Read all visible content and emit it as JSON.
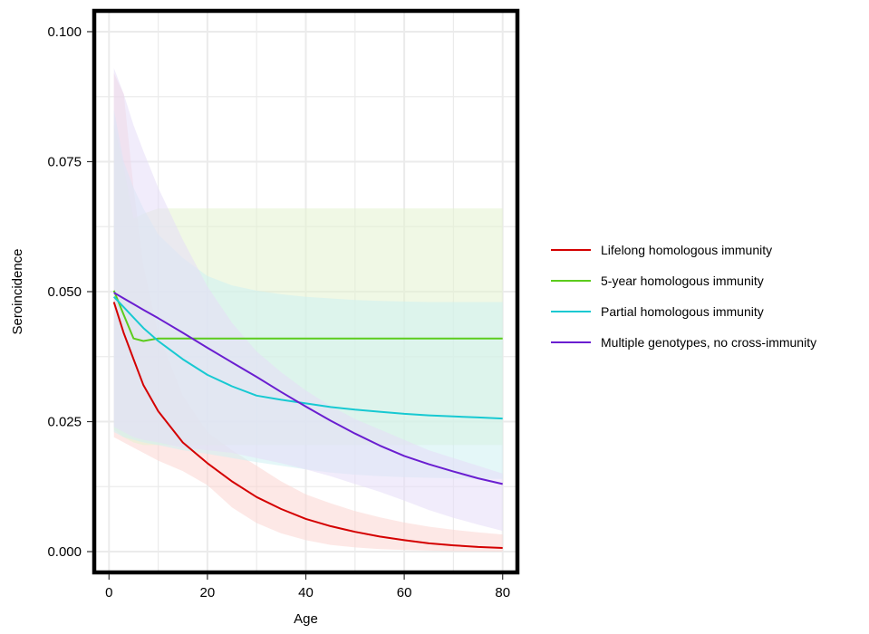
{
  "chart_data": {
    "type": "line",
    "title": "",
    "xlabel": "Age",
    "ylabel": "Seroincidence",
    "xlim": [
      -3,
      83
    ],
    "ylim": [
      -0.004,
      0.104
    ],
    "xticks": [
      0,
      20,
      40,
      60,
      80
    ],
    "xtick_labels": [
      "0",
      "20",
      "40",
      "60",
      "80"
    ],
    "yticks": [
      0.0,
      0.025,
      0.05,
      0.075,
      0.1
    ],
    "ytick_labels": [
      "0.000",
      "0.025",
      "0.050",
      "0.075",
      "0.100"
    ],
    "grid": true,
    "legend": "right",
    "x": [
      1,
      3,
      5,
      7,
      10,
      15,
      20,
      25,
      30,
      35,
      40,
      45,
      50,
      55,
      60,
      65,
      70,
      75,
      80
    ],
    "series": [
      {
        "name": "Lifelong homologous immunity",
        "color": "#d40000",
        "band_color": "#fcd6d2",
        "values": [
          0.048,
          0.042,
          0.037,
          0.032,
          0.027,
          0.021,
          0.017,
          0.0135,
          0.0105,
          0.0082,
          0.0063,
          0.0049,
          0.0038,
          0.0029,
          0.0022,
          0.0016,
          0.0012,
          0.0009,
          0.0007
        ],
        "lower": [
          0.022,
          0.021,
          0.02,
          0.019,
          0.0175,
          0.0155,
          0.0128,
          0.0085,
          0.0055,
          0.0035,
          0.0022,
          0.0013,
          0.0008,
          0.0005,
          0.0003,
          0.0002,
          0.0001,
          0.0001,
          0.0
        ],
        "upper": [
          0.092,
          0.088,
          0.07,
          0.055,
          0.042,
          0.03,
          0.023,
          0.0195,
          0.0165,
          0.0135,
          0.011,
          0.0093,
          0.0078,
          0.0066,
          0.0056,
          0.0048,
          0.0042,
          0.0037,
          0.0033
        ]
      },
      {
        "name": "5-year homologous immunity",
        "color": "#5ccc1c",
        "band_color": "#e4f2cf",
        "values": [
          0.0502,
          0.0455,
          0.041,
          0.0405,
          0.041,
          0.041,
          0.041,
          0.041,
          0.041,
          0.041,
          0.041,
          0.041,
          0.041,
          0.041,
          0.041,
          0.041,
          0.041,
          0.041,
          0.041
        ],
        "lower": [
          0.0235,
          0.022,
          0.021,
          0.0205,
          0.0205,
          0.0205,
          0.0205,
          0.0205,
          0.0205,
          0.0205,
          0.0205,
          0.0205,
          0.0205,
          0.0205,
          0.0205,
          0.0205,
          0.0205,
          0.0205,
          0.0205
        ],
        "upper": [
          0.082,
          0.074,
          0.064,
          0.065,
          0.066,
          0.066,
          0.066,
          0.066,
          0.066,
          0.066,
          0.066,
          0.066,
          0.066,
          0.066,
          0.066,
          0.066,
          0.066,
          0.066,
          0.066
        ]
      },
      {
        "name": "Partial homologous immunity",
        "color": "#17c9d2",
        "band_color": "#cdf0f2",
        "values": [
          0.049,
          0.047,
          0.045,
          0.043,
          0.0405,
          0.037,
          0.034,
          0.0318,
          0.03,
          0.0292,
          0.0285,
          0.0278,
          0.0273,
          0.0269,
          0.0265,
          0.0262,
          0.026,
          0.0258,
          0.0256
        ],
        "lower": [
          0.023,
          0.022,
          0.0215,
          0.021,
          0.0205,
          0.0195,
          0.0188,
          0.018,
          0.0172,
          0.0165,
          0.0158,
          0.0152,
          0.0148,
          0.0145,
          0.0143,
          0.0142,
          0.0141,
          0.014,
          0.014
        ],
        "upper": [
          0.085,
          0.075,
          0.07,
          0.066,
          0.061,
          0.0565,
          0.053,
          0.0512,
          0.0502,
          0.0495,
          0.049,
          0.0487,
          0.0484,
          0.0482,
          0.0481,
          0.048,
          0.048,
          0.048,
          0.048
        ]
      },
      {
        "name": "Multiple genotypes, no cross-immunity",
        "color": "#6a1ed0",
        "band_color": "#e6dcf8",
        "values": [
          0.0498,
          0.0487,
          0.0476,
          0.0465,
          0.0449,
          0.0421,
          0.0392,
          0.0364,
          0.0336,
          0.0307,
          0.0279,
          0.0252,
          0.0227,
          0.0204,
          0.0184,
          0.0168,
          0.0154,
          0.0141,
          0.013
        ],
        "lower": [
          0.024,
          0.023,
          0.022,
          0.0215,
          0.021,
          0.02,
          0.0195,
          0.019,
          0.018,
          0.017,
          0.0158,
          0.0145,
          0.013,
          0.0115,
          0.0098,
          0.008,
          0.0065,
          0.0052,
          0.004
        ],
        "upper": [
          0.093,
          0.088,
          0.082,
          0.077,
          0.07,
          0.06,
          0.051,
          0.044,
          0.0385,
          0.0345,
          0.031,
          0.028,
          0.0255,
          0.0235,
          0.0215,
          0.0195,
          0.018,
          0.0165,
          0.015
        ]
      }
    ]
  }
}
